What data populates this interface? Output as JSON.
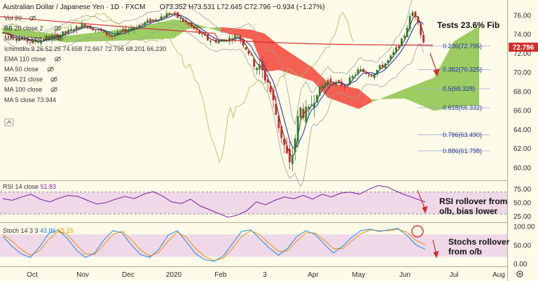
{
  "header": {
    "title": "Australian Dollar / Japanese Yen · 1D · FXCM",
    "ohlc": "O73.352 H73.531 L72.645 C72.796 −0.934 (−1.27%)"
  },
  "indicator_legend": [
    {
      "label": "Vol 20",
      "value": ""
    },
    {
      "label": "BB 20 close 2",
      "value": ""
    },
    {
      "label": "MA 200 close",
      "value": "72.946"
    },
    {
      "label": "Ichimoku 9 26 52 26",
      "value": "74.658 72.667 72.796 68.201 66.230"
    },
    {
      "label": "EMA 110 close",
      "value": ""
    },
    {
      "label": "MA 50 close",
      "value": ""
    },
    {
      "label": "EMA 21 close",
      "value": ""
    },
    {
      "label": "MA 100 close",
      "value": ""
    },
    {
      "label": "MA 5 close",
      "value": "73.944"
    }
  ],
  "annotations": {
    "fib_title": "Tests 23.6% Fib",
    "rsi_note": "RSI rollover from\no/b, bias lower",
    "stoch_note": "Stochs rollover\nfrom o/b"
  },
  "price_tag": "72.796",
  "colors": {
    "up": "#2e7d32",
    "down": "#c62828",
    "cloud_bull": "#8bc34a",
    "cloud_bear": "#f44336",
    "ma200": "#d32f2f",
    "bb": "#9e9e9e",
    "kijun": "#1e40af",
    "span_lag": "#9ccc65",
    "rsi": "#7b1fa2",
    "rsi_band": "#e1bee7",
    "stoch_k": "#1e88e5",
    "stoch_d": "#fb8c00",
    "fib": "#1f3b8f"
  },
  "chart_data": [
    {
      "type": "candlestick",
      "title": "Australian Dollar / Japanese Yen · 1D · FXCM",
      "ylim": [
        59,
        77.2
      ],
      "y_ticks": [
        60,
        62,
        64,
        66,
        68,
        70,
        72,
        74,
        76
      ],
      "x_ticks": [
        "Oct",
        "Nov",
        "Dec",
        "2020",
        "Feb",
        "3",
        "Apr",
        "May",
        "Jun",
        "Jul",
        "Aug"
      ],
      "current_price": 72.796,
      "fib_levels": [
        {
          "label": "0.236(72.795)",
          "value": 72.795
        },
        {
          "label": "0.382(70.325)",
          "value": 70.325
        },
        {
          "label": "0.5(68.328)",
          "value": 68.328
        },
        {
          "label": "0.618(66.332)",
          "value": 66.332
        },
        {
          "label": "0.786(63.490)",
          "value": 63.49
        },
        {
          "label": "0.886(61.798)",
          "value": 61.798
        }
      ],
      "anchors": [
        {
          "t": "Sep",
          "v": 74.2
        },
        {
          "t": "Oct",
          "v": 73.2
        },
        {
          "t": "late-Oct",
          "v": 74.2
        },
        {
          "t": "Nov",
          "v": 75.1
        },
        {
          "t": "late-Nov",
          "v": 73.8
        },
        {
          "t": "Dec",
          "v": 74.6
        },
        {
          "t": "mid-Dec",
          "v": 75.3
        },
        {
          "t": "early-Jan",
          "v": 76.3
        },
        {
          "t": "mid-Jan",
          "v": 75.1
        },
        {
          "t": "late-Jan",
          "v": 73.5
        },
        {
          "t": "Feb",
          "v": 73.3
        },
        {
          "t": "mid-Feb",
          "v": 73.9
        },
        {
          "t": "late-Feb",
          "v": 71.5
        },
        {
          "t": "early-Mar",
          "v": 69.2
        },
        {
          "t": "mid-Mar",
          "v": 64.5
        },
        {
          "t": "Mar-19",
          "v": 60.0
        },
        {
          "t": "late-Mar",
          "v": 66.2
        },
        {
          "t": "early-Apr",
          "v": 65.5
        },
        {
          "t": "Apr",
          "v": 67.5
        },
        {
          "t": "mid-Apr",
          "v": 69.2
        },
        {
          "t": "late-Apr",
          "v": 68.6
        },
        {
          "t": "May",
          "v": 70.3
        },
        {
          "t": "mid-May",
          "v": 69.8
        },
        {
          "t": "late-May",
          "v": 71.3
        },
        {
          "t": "Jun-1",
          "v": 73.5
        },
        {
          "t": "Jun-5",
          "v": 76.4
        },
        {
          "t": "Jun-9",
          "v": 75.8
        },
        {
          "t": "Jun-12",
          "v": 73.6
        },
        {
          "t": "Jun-15",
          "v": 72.8
        }
      ],
      "ma200": {
        "start": 75.9,
        "end": 72.9
      },
      "cloud": [
        {
          "t": "Sep",
          "a": 74.8,
          "b": 74.1
        },
        {
          "t": "late-Oct",
          "a": 73.9,
          "b": 73.2
        },
        {
          "t": "Dec",
          "a": 74.6,
          "b": 73.4
        },
        {
          "t": "Jan",
          "a": 75.6,
          "b": 73.6
        },
        {
          "t": "mid-Jan",
          "a": 75.4,
          "b": 74.6
        },
        {
          "t": "Feb",
          "a": 74.3,
          "b": 74.8
        },
        {
          "t": "late-Feb",
          "a": 73.5,
          "b": 74.5
        },
        {
          "t": "Mar",
          "a": 70.1,
          "b": 74.1
        },
        {
          "t": "mid-Mar",
          "a": 70.3,
          "b": 72.9
        },
        {
          "t": "Apr",
          "a": 69.1,
          "b": 70.5
        },
        {
          "t": "mid-Apr",
          "a": 67.4,
          "b": 69.0
        },
        {
          "t": "May",
          "a": 66.2,
          "b": 68.3
        },
        {
          "t": "mid-May",
          "a": 66.9,
          "b": 67.2
        },
        {
          "t": "Jun",
          "a": 68.3,
          "b": 67.3
        },
        {
          "t": "mid-Jun",
          "a": 69.5,
          "b": 66.0
        },
        {
          "t": "Jul",
          "a": 73.3,
          "b": 66.4
        },
        {
          "t": "mid-Jul",
          "a": 74.9,
          "b": 66.6
        }
      ]
    },
    {
      "type": "line",
      "title": "RSI 14 close",
      "current_value": 51.83,
      "ylim": [
        20,
        85
      ],
      "y_ticks": [
        25,
        50,
        75
      ],
      "overbought": 70,
      "oversold": 30,
      "series": [
        {
          "name": "RSI 14 close",
          "values": [
            58,
            55,
            61,
            66,
            57,
            52,
            59,
            64,
            62,
            55,
            48,
            51,
            57,
            62,
            58,
            66,
            71,
            63,
            52,
            49,
            57,
            45,
            38,
            31,
            24,
            28,
            36,
            52,
            47,
            55,
            61,
            58,
            64,
            57,
            66,
            61,
            68,
            70,
            66,
            75,
            82,
            79,
            71,
            64,
            58,
            52
          ]
        }
      ]
    },
    {
      "type": "line",
      "title": "Stoch 14 3 3",
      "current_values": [
        43.86,
        55.15
      ],
      "ylim": [
        0,
        105
      ],
      "y_ticks": [
        0,
        50,
        100
      ],
      "band": [
        20,
        80
      ],
      "series": [
        {
          "name": "K",
          "values": [
            75,
            48,
            28,
            18,
            46,
            82,
            92,
            70,
            38,
            18,
            30,
            65,
            90,
            84,
            52,
            26,
            18,
            40,
            78,
            90,
            60,
            28,
            12,
            8,
            22,
            55,
            88,
            92,
            68,
            44,
            24,
            42,
            74,
            90,
            80,
            54,
            30,
            48,
            72,
            90,
            94,
            88,
            92,
            96,
            78,
            52,
            40
          ]
        },
        {
          "name": "D",
          "values": [
            80,
            62,
            40,
            24,
            36,
            66,
            88,
            80,
            52,
            28,
            26,
            52,
            80,
            88,
            66,
            38,
            22,
            32,
            62,
            86,
            72,
            42,
            20,
            10,
            16,
            42,
            74,
            90,
            78,
            56,
            34,
            36,
            62,
            84,
            84,
            64,
            42,
            42,
            62,
            82,
            92,
            90,
            90,
            94,
            86,
            64,
            52
          ]
        }
      ]
    }
  ]
}
